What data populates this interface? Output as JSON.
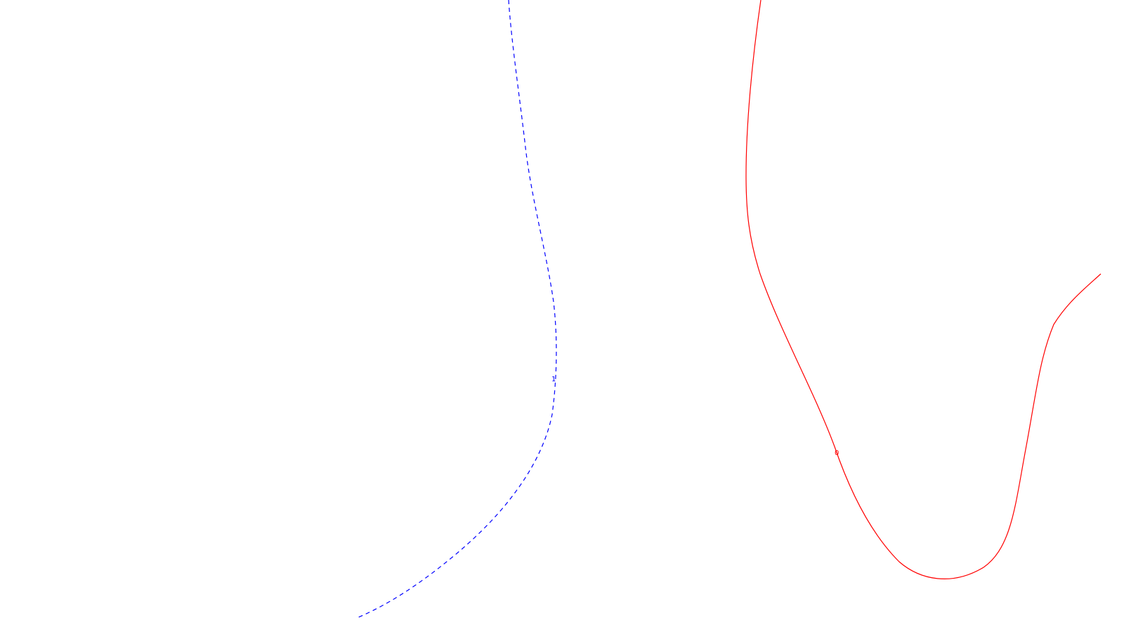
{
  "chart_data": {
    "type": "line",
    "title": "",
    "xlabel": "",
    "ylabel": "",
    "grid": false,
    "legend": "none",
    "series": [
      {
        "level_label": "1",
        "color": "#0000ff",
        "style": "dashed"
      },
      {
        "level_label": "0",
        "color": "#ff0000",
        "style": "solid"
      }
    ]
  }
}
